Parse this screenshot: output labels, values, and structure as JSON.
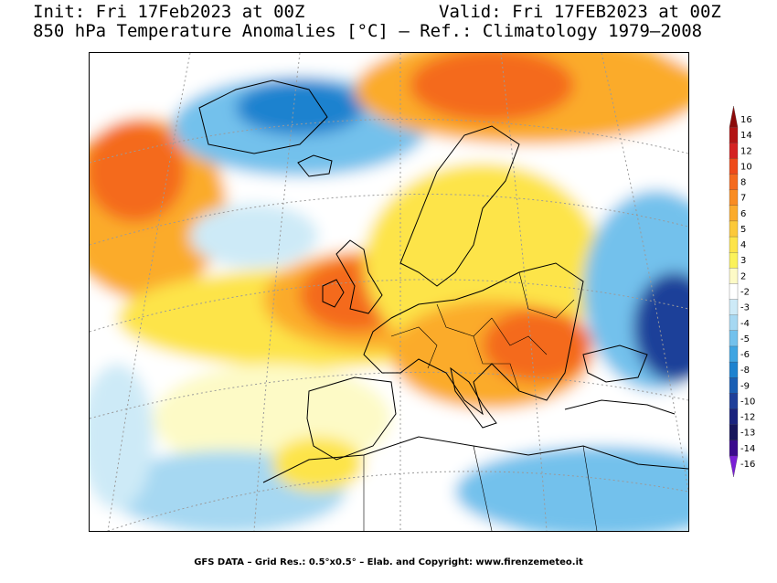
{
  "header": {
    "init": "Init: Fri 17Feb2023 at 00Z",
    "valid": "Valid: Fri 17FEB2023 at 00Z",
    "subtitle": "850 hPa Temperature Anomalies [°C] – Ref.: Climatology 1979–2008"
  },
  "footer": "GFS DATA – Grid Res.: 0.5°x0.5° – Elab. and Copyright: www.firenzemeteo.it",
  "colorbar": {
    "levels": [
      {
        "label": "16",
        "color": "#8b0a0a"
      },
      {
        "label": "14",
        "color": "#b21414"
      },
      {
        "label": "12",
        "color": "#d42222"
      },
      {
        "label": "10",
        "color": "#ee4a1a"
      },
      {
        "label": "8",
        "color": "#f46a1e"
      },
      {
        "label": "7",
        "color": "#f98c22"
      },
      {
        "label": "6",
        "color": "#fbab2c"
      },
      {
        "label": "5",
        "color": "#fcc93a"
      },
      {
        "label": "4",
        "color": "#fde449"
      },
      {
        "label": "3",
        "color": "#fbf25a"
      },
      {
        "label": "2",
        "color": "#fdfac6"
      },
      {
        "label": "-2",
        "color": "#ffffff"
      },
      {
        "label": "-3",
        "color": "#cdeaf7"
      },
      {
        "label": "-4",
        "color": "#a6d8f2"
      },
      {
        "label": "-5",
        "color": "#73c1ec"
      },
      {
        "label": "-6",
        "color": "#3fa5e2"
      },
      {
        "label": "-8",
        "color": "#1d82cf"
      },
      {
        "label": "-9",
        "color": "#1a5fb4"
      },
      {
        "label": "-10",
        "color": "#1f3f99"
      },
      {
        "label": "-12",
        "color": "#1a237e"
      },
      {
        "label": "-13",
        "color": "#17165c"
      },
      {
        "label": "-14",
        "color": "#3a0a8c"
      },
      {
        "label": "-16",
        "color": "#7a1fd6"
      }
    ]
  },
  "map": {
    "colors": {
      "hot": "#f46a1e",
      "warm": "#fbab2c",
      "mild": "#fde449",
      "cold": "#73c1ec",
      "very_cold": "#1f3f99",
      "coast": "#000000",
      "grid": "#9a9a9a"
    }
  }
}
